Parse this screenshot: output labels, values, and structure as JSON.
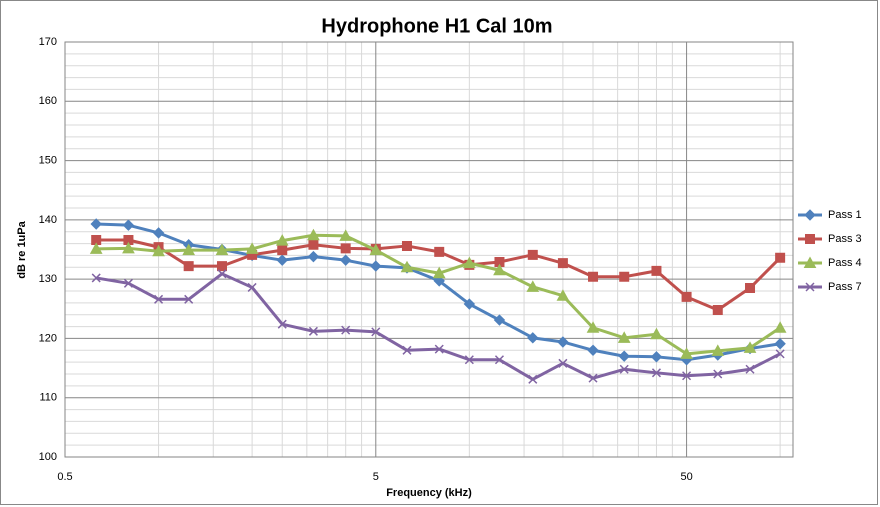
{
  "chart_data": {
    "type": "line",
    "title": "Hydrophone H1 Cal 10m",
    "xlabel": "Frequency (kHz)",
    "ylabel": "dB re 1uPa",
    "xscale": "log",
    "xlim": [
      0.5,
      110
    ],
    "xticks": [
      0.5,
      5,
      50
    ],
    "xminorticks": [
      1,
      1.5,
      2,
      2.5,
      3,
      3.5,
      4,
      4.5,
      10,
      15,
      20,
      25,
      30,
      35,
      40,
      45,
      100
    ],
    "ylim": [
      100,
      170
    ],
    "yticks": [
      100,
      110,
      120,
      130,
      140,
      150,
      160,
      170
    ],
    "yminorticks": [
      102,
      104,
      106,
      108,
      112,
      114,
      116,
      118,
      122,
      124,
      126,
      128,
      132,
      134,
      136,
      138,
      142,
      144,
      146,
      148,
      152,
      154,
      156,
      158,
      162,
      164,
      166,
      168
    ],
    "grid": true,
    "legend": "right",
    "x": [
      0.63,
      0.8,
      1,
      1.25,
      1.6,
      2,
      2.5,
      3.15,
      4,
      5,
      6.3,
      8,
      10,
      12.5,
      16,
      20,
      25,
      31.5,
      40,
      50,
      63,
      80,
      100
    ],
    "series": [
      {
        "name": "Pass 1",
        "color": "#4f81bd",
        "marker": "diamond",
        "values": [
          139.3,
          139.1,
          137.8,
          135.8,
          135,
          134,
          133.2,
          133.8,
          133.2,
          132.2,
          131.9,
          129.7,
          125.8,
          123.1,
          120.1,
          119.4,
          118,
          117,
          116.9,
          116.4,
          117.2,
          118.3,
          119.1
        ]
      },
      {
        "name": "Pass 3",
        "color": "#c0504d",
        "marker": "square",
        "values": [
          136.6,
          136.6,
          135.4,
          132.2,
          132.2,
          134.1,
          134.9,
          135.8,
          135.2,
          135.1,
          135.6,
          134.6,
          132.4,
          132.9,
          134.1,
          132.7,
          130.4,
          130.4,
          131.4,
          127,
          124.8,
          128.5,
          133.6
        ]
      },
      {
        "name": "Pass 4",
        "color": "#9bbb59",
        "marker": "triangle",
        "values": [
          135.1,
          135.2,
          134.7,
          134.9,
          134.9,
          135.1,
          136.5,
          137.4,
          137.3,
          134.9,
          132,
          131,
          132.7,
          131.5,
          128.7,
          127.2,
          121.8,
          120.1,
          120.7,
          117.4,
          117.9,
          118.4,
          121.8
        ]
      },
      {
        "name": "Pass 7",
        "color": "#8064a2",
        "marker": "x",
        "values": [
          130.2,
          129.3,
          126.6,
          126.6,
          130.9,
          128.6,
          122.4,
          121.2,
          121.4,
          121.1,
          118,
          118.2,
          116.4,
          116.4,
          113.1,
          115.8,
          113.3,
          114.8,
          114.2,
          113.7,
          114,
          114.8,
          117.4
        ]
      }
    ]
  }
}
